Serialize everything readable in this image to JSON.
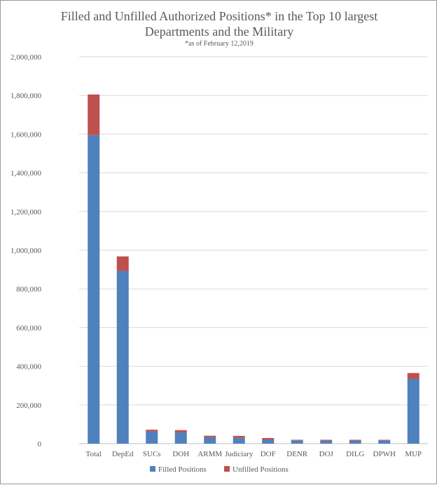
{
  "chart_data": {
    "type": "bar",
    "stacked": true,
    "title_line1": "Filled and Unfilled Authorized Positions* in the Top 10 largest",
    "title_line2": "Departments and the Military",
    "subtitle": "*as of February 12,2019",
    "categories": [
      "Total",
      "DepEd",
      "SUCs",
      "DOH",
      "ARMM",
      "Judiciary",
      "DOF",
      "DENR",
      "DOJ",
      "DILG",
      "DPWH",
      "MUP"
    ],
    "series": [
      {
        "name": "Filled Positions",
        "color": "#4f81bd",
        "values": [
          1595000,
          893000,
          63000,
          58000,
          33000,
          30000,
          20000,
          17000,
          15000,
          16000,
          17000,
          335000
        ]
      },
      {
        "name": "Unfilled Positions",
        "color": "#c0504d",
        "values": [
          210000,
          75000,
          9000,
          12000,
          8000,
          10000,
          9000,
          3000,
          5000,
          4000,
          3000,
          30000
        ]
      }
    ],
    "ylim": [
      0,
      2000000
    ],
    "yticks": [
      "0",
      "200,000",
      "400,000",
      "600,000",
      "800,000",
      "1,000,000",
      "1,200,000",
      "1,400,000",
      "1,600,000",
      "1,800,000",
      "2,000,000"
    ],
    "grid": true,
    "legend_position": "bottom"
  }
}
